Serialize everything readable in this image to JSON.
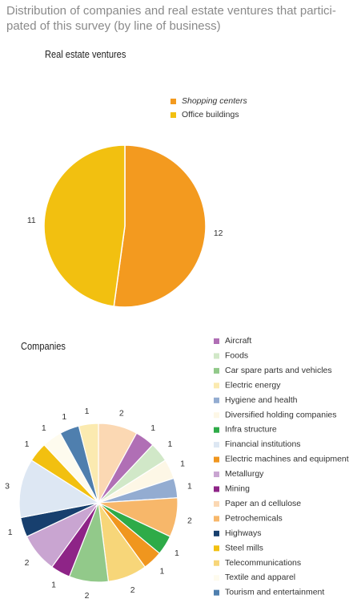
{
  "title": "Distribution of companies and real estate ventures that partici-pated of this survey (by line of business)",
  "title_lines": [
    "Distribution of companies and real estate ventures that partici-",
    "pated of this survey (by line of business)"
  ],
  "chart_data": [
    {
      "type": "pie",
      "title": "Real estate ventures",
      "categories": [
        "Shopping centers",
        "Office buildings"
      ],
      "values": [
        12,
        11
      ],
      "colors": [
        "#f39a1f",
        "#f2c010"
      ],
      "legend": "top-right"
    },
    {
      "type": "pie",
      "title": "Companies",
      "categories": [
        "Aircraft",
        "Foods",
        "Car spare parts and vehicles",
        "Electric energy",
        "Hygiene and health",
        "Diversified holding companies",
        "Infra structure",
        "Financial institutions",
        "Electric machines and equipment",
        "Metallurgy",
        "Mining",
        "Paper an d cellulose",
        "Petrochemicals",
        "Highways",
        "Steel mills",
        "Telecommunications",
        "Textile and apparel",
        "Tourism and entertainment"
      ],
      "values": [
        1,
        1,
        2,
        1,
        1,
        1,
        1,
        3,
        1,
        2,
        1,
        2,
        2,
        1,
        1,
        2,
        1,
        1
      ],
      "colors": [
        "#b06fb5",
        "#d1e8c8",
        "#92c98a",
        "#fbeab0",
        "#93acd1",
        "#fdf7e6",
        "#2eab48",
        "#dde7f3",
        "#f0961e",
        "#c9a5d1",
        "#8e2487",
        "#fbd8b3",
        "#f7b76a",
        "#173f6e",
        "#f2c010",
        "#f7d679",
        "#fefbee",
        "#4f7fae"
      ],
      "slice_order": [
        11,
        0,
        1,
        5,
        4,
        12,
        6,
        8,
        15,
        2,
        10,
        9,
        13,
        7,
        14,
        16,
        17,
        3
      ],
      "legend": "right"
    }
  ]
}
